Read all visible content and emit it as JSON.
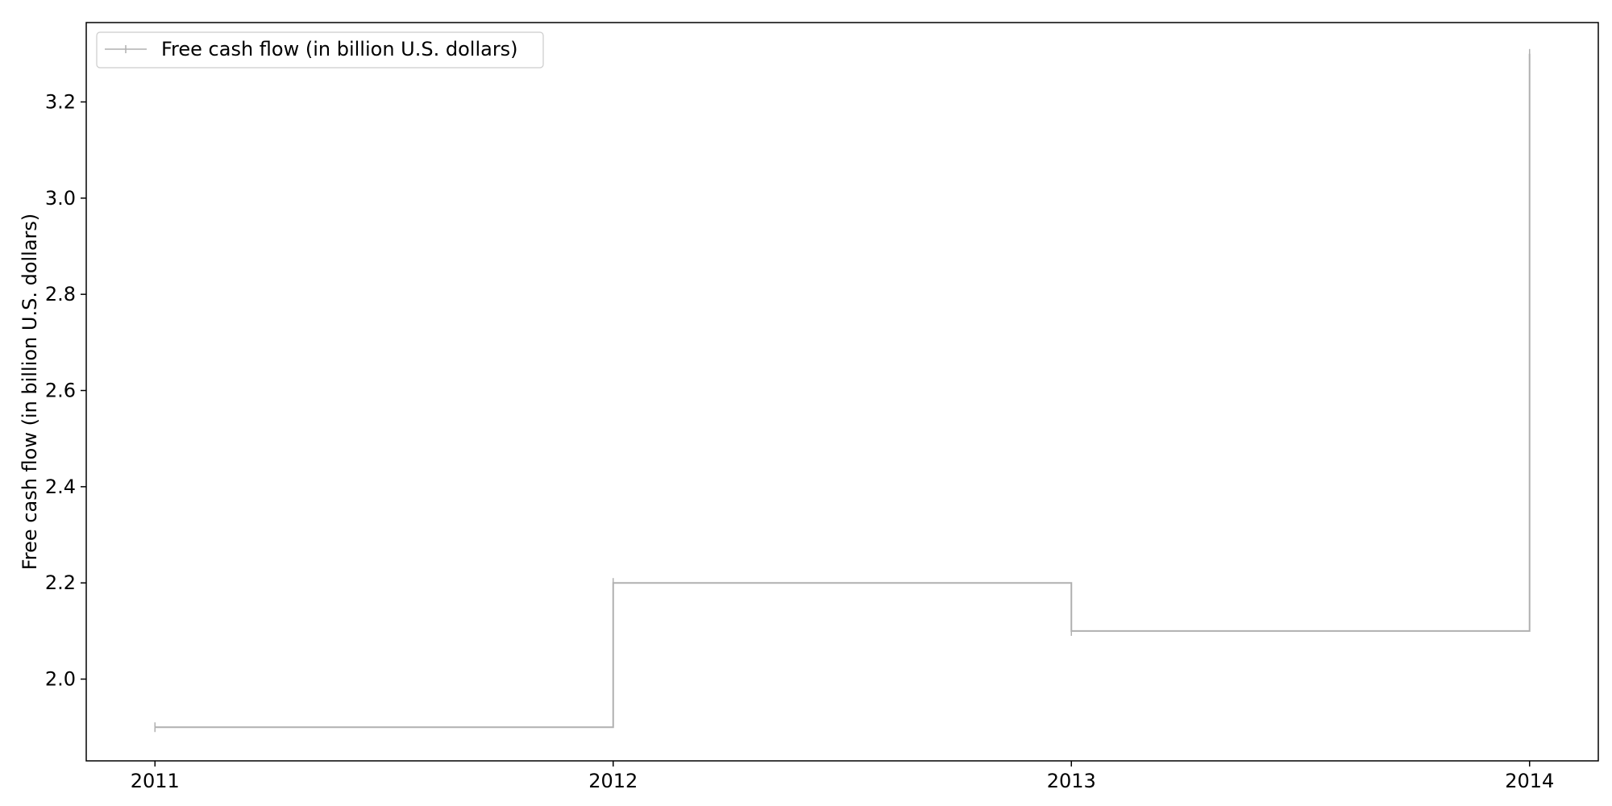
{
  "chart_data": {
    "type": "line",
    "step": "post",
    "x": [
      "2011",
      "2012",
      "2013",
      "2014"
    ],
    "series": [
      {
        "name": "Free cash flow (in billion U.S. dollars)",
        "values": [
          1.9,
          2.2,
          2.1,
          3.3
        ],
        "color": "#b0b0b0"
      }
    ],
    "title": "",
    "xlabel": "",
    "ylabel": "Free cash flow (in billion U.S. dollars)",
    "xlim": [
      2010.85,
      2014.15
    ],
    "ylim": [
      1.83,
      3.365
    ],
    "yticks": [
      "2.0",
      "2.2",
      "2.4",
      "2.6",
      "2.8",
      "3.0",
      "3.2"
    ],
    "xticks": [
      "2011",
      "2012",
      "2013",
      "2014"
    ],
    "grid": false,
    "legend": "top-left"
  }
}
